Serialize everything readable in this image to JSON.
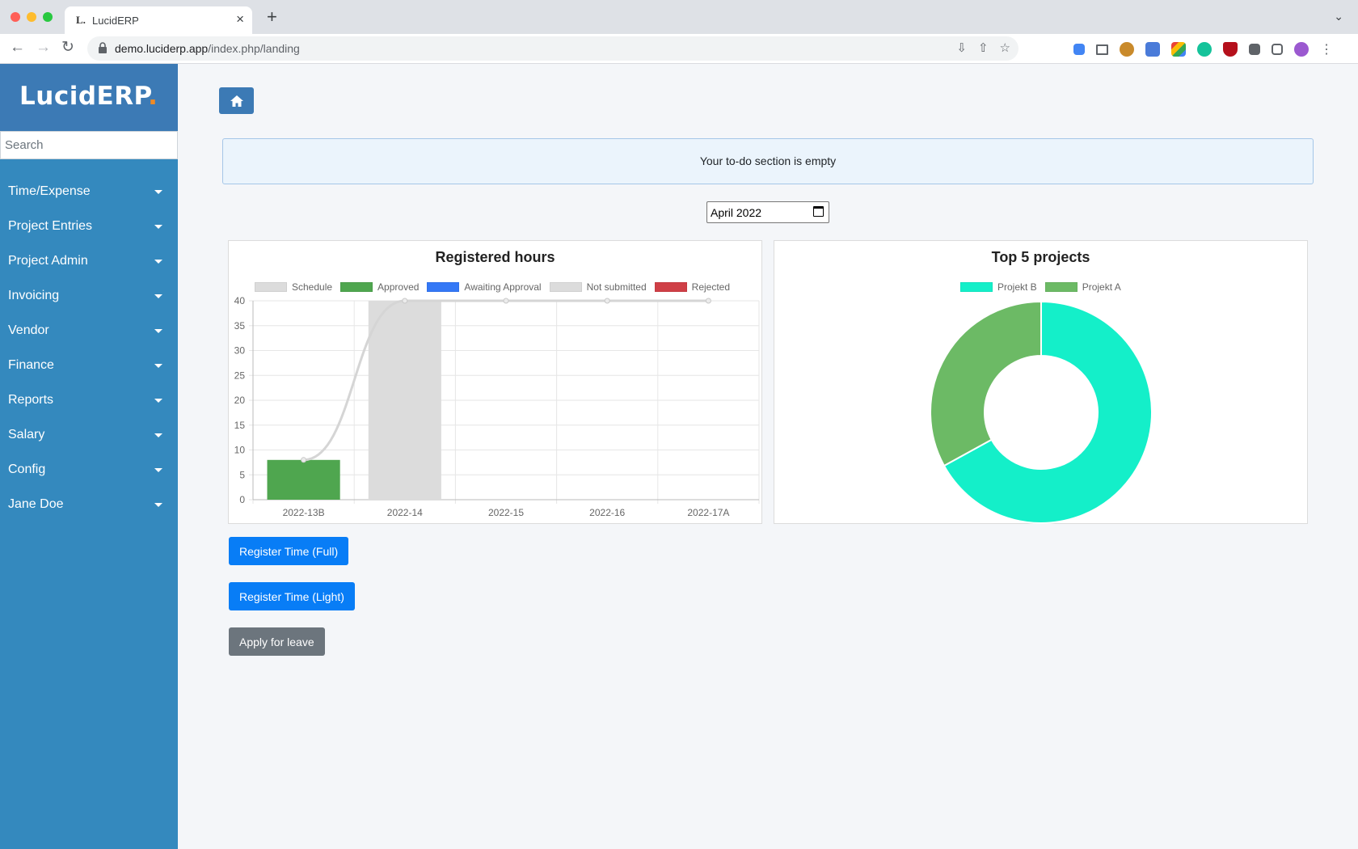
{
  "browser": {
    "tab_title": "LucidERP",
    "tab_favicon": "L.",
    "url_host": "demo.luciderp.app",
    "url_path": "/index.php/landing"
  },
  "sidebar": {
    "brand": "LucidERP",
    "brand_dot": ".",
    "search_placeholder": "Search",
    "items": [
      {
        "label": "Time/Expense"
      },
      {
        "label": "Project Entries"
      },
      {
        "label": "Project Admin"
      },
      {
        "label": "Invoicing"
      },
      {
        "label": "Vendor"
      },
      {
        "label": "Finance"
      },
      {
        "label": "Reports"
      },
      {
        "label": "Salary"
      },
      {
        "label": "Config"
      },
      {
        "label": "Jane Doe"
      }
    ]
  },
  "main": {
    "home_icon": "home-icon",
    "todo_message": "Your to-do section is empty",
    "month_value": "April  2022"
  },
  "actions": {
    "register_full": "Register Time (Full)",
    "register_light": "Register Time (Light)",
    "apply_leave": "Apply for leave"
  },
  "colors": {
    "sidebar": "#3489be",
    "brand_bg": "#3c7ab5",
    "primary": "#087df6",
    "secondary": "#6c757d"
  },
  "chart_data": [
    {
      "type": "bar",
      "title": "Registered hours",
      "categories": [
        "2022-13B",
        "2022-14",
        "2022-15",
        "2022-16",
        "2022-17A"
      ],
      "ylim": [
        0,
        40
      ],
      "yticks": [
        0,
        5,
        10,
        15,
        20,
        25,
        30,
        35,
        40
      ],
      "legend_position": "top",
      "grid": true,
      "series": [
        {
          "name": "Schedule",
          "type": "line",
          "color": "#dcdcdc",
          "values": [
            8,
            40,
            40,
            40,
            40
          ]
        },
        {
          "name": "Approved",
          "color": "#4fa64f",
          "values": [
            8,
            0,
            0,
            0,
            0
          ]
        },
        {
          "name": "Awaiting Approval",
          "color": "#3478f6",
          "values": [
            0,
            0,
            0,
            0,
            0
          ]
        },
        {
          "name": "Not submitted",
          "color": "#dcdcdc",
          "values": [
            0,
            40,
            0,
            0,
            0
          ]
        },
        {
          "name": "Rejected",
          "color": "#cf3f46",
          "values": [
            0,
            0,
            0,
            0,
            0
          ]
        }
      ]
    },
    {
      "type": "pie",
      "title": "Top 5 projects",
      "legend_position": "top",
      "categories": [
        "Projekt B",
        "Projekt A"
      ],
      "values": [
        67,
        33
      ],
      "colors": [
        "#14efc9",
        "#6cba65"
      ]
    }
  ]
}
